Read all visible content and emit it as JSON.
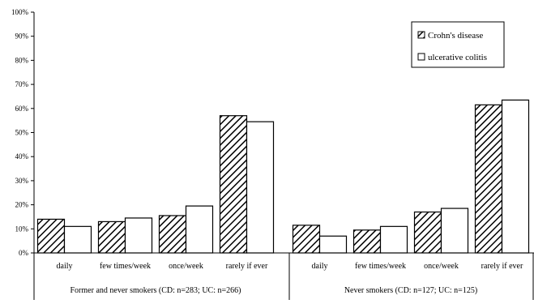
{
  "chart_data": {
    "type": "bar",
    "y_ticks": [
      "0%",
      "10%",
      "20%",
      "30%",
      "40%",
      "50%",
      "60%",
      "70%",
      "80%",
      "90%",
      "100%"
    ],
    "ylim": [
      0,
      100
    ],
    "grid": false,
    "legend_position": "top-right",
    "categories": [
      "daily",
      "few times/week",
      "once/week",
      "rarely if ever"
    ],
    "groups": [
      {
        "label": "Former and never smokers (CD: n=283; UC: n=266)",
        "series": [
          {
            "name": "Crohn's disease",
            "values": [
              14,
              13,
              15.5,
              57
            ]
          },
          {
            "name": "ulcerative colitis",
            "values": [
              11,
              14.5,
              19.5,
              54.5
            ]
          }
        ]
      },
      {
        "label": "Never smokers (CD: n=127; UC: n=125)",
        "series": [
          {
            "name": "Crohn's disease",
            "values": [
              11.5,
              9.5,
              17,
              61.5
            ]
          },
          {
            "name": "ulcerative colitis",
            "values": [
              7,
              11,
              18.5,
              63.5
            ]
          }
        ]
      }
    ],
    "legend": [
      {
        "name": "Crohn's disease",
        "pattern": "hatched"
      },
      {
        "name": "ulcerative colitis",
        "pattern": "white"
      }
    ],
    "colors": {
      "bar_stroke": "#000000",
      "hatch": "#000000",
      "fill_plain": "#ffffff"
    }
  }
}
